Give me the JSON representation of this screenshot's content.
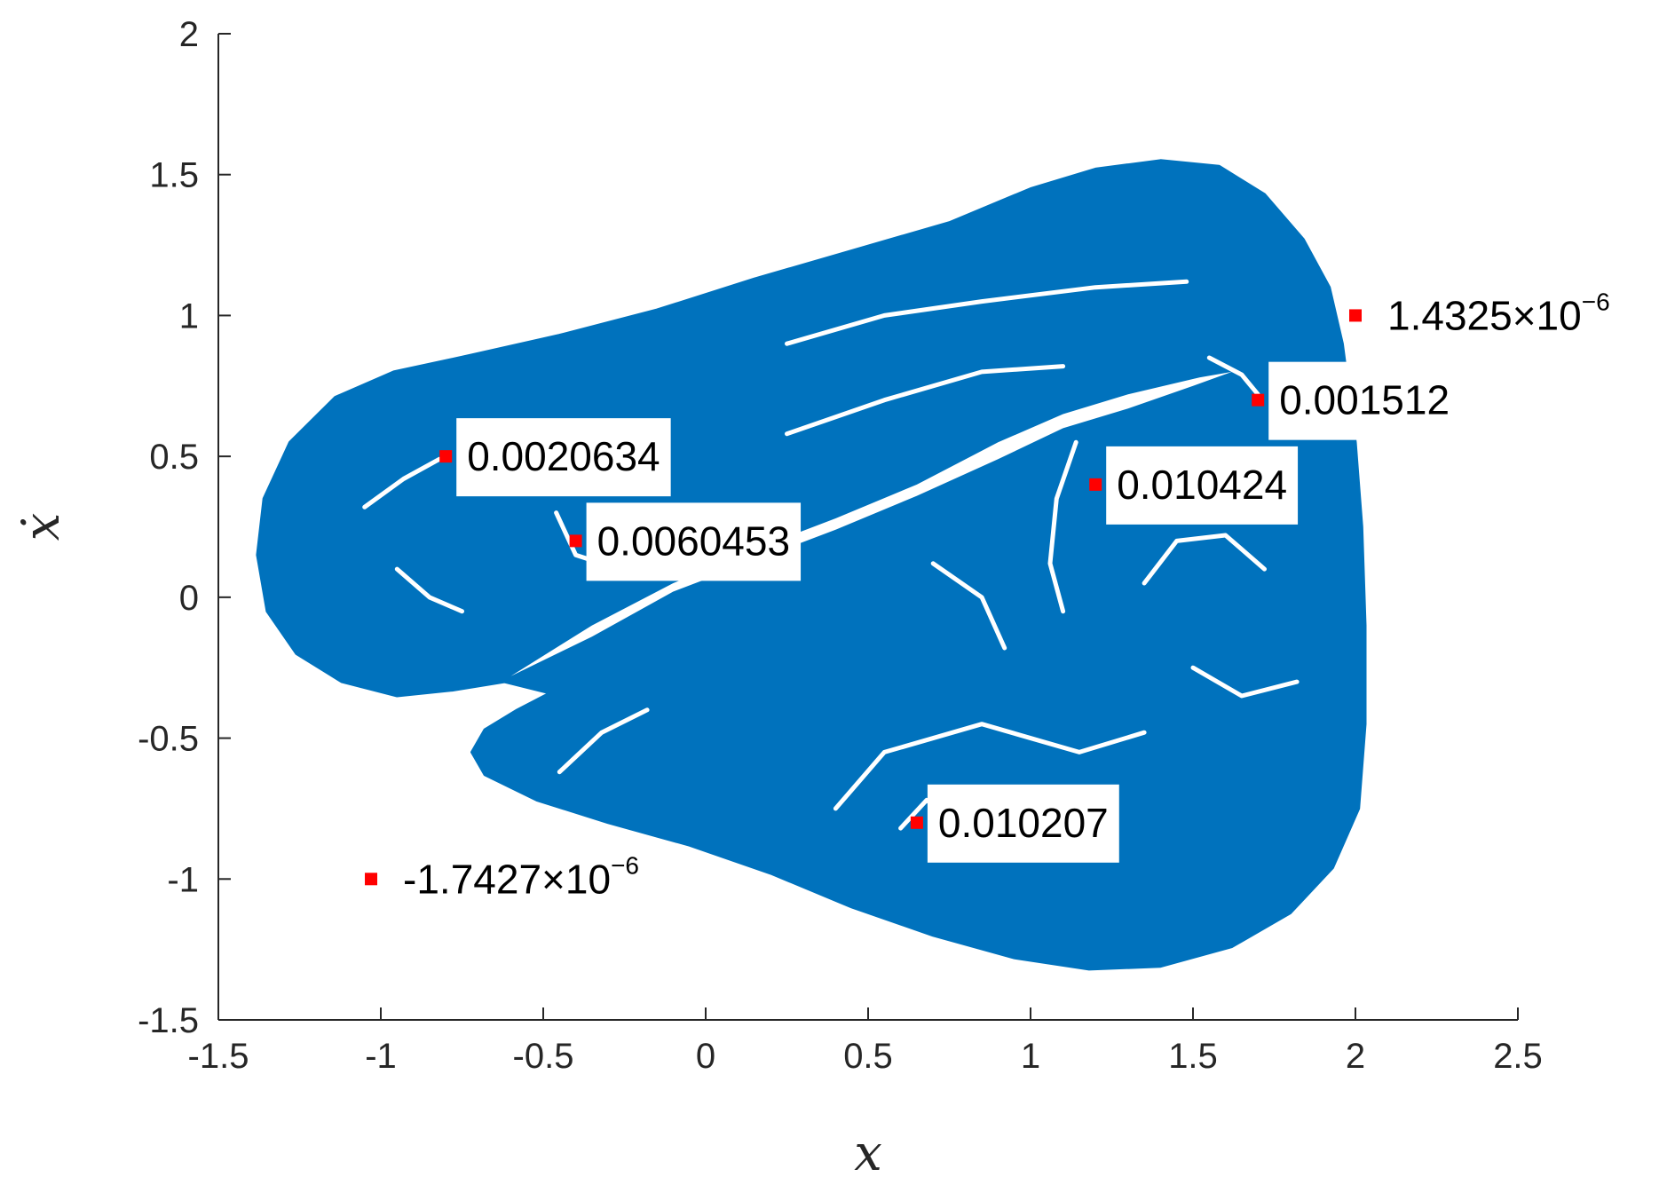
{
  "colors": {
    "basin": "#0072BD",
    "marker": "#FF0000",
    "axis": "#262626",
    "label_box": "#FFFFFF"
  },
  "chart_data": {
    "type": "scatter",
    "title": "",
    "xlabel": "x",
    "ylabel": "ẋ",
    "xlim": [
      -1.5,
      2.5
    ],
    "ylim": [
      -1.5,
      2
    ],
    "x_ticks": [
      -1.5,
      -1,
      -0.5,
      0,
      0.5,
      1,
      1.5,
      2,
      2.5
    ],
    "x_tick_labels": [
      "-1.5",
      "-1",
      "-0.5",
      "0",
      "0.5",
      "1",
      "1.5",
      "2",
      "2.5"
    ],
    "y_ticks": [
      -1.5,
      -1,
      -0.5,
      0,
      0.5,
      1,
      1.5,
      2
    ],
    "y_tick_labels": [
      "-1.5",
      "-1",
      "-0.5",
      "0",
      "0.5",
      "1",
      "1.5",
      "2"
    ],
    "grid": false,
    "basin_region": "filled blue basin of attraction with white filaments",
    "points": [
      {
        "x": -0.8,
        "y": 0.5,
        "label": "0.0020634",
        "boxed": true
      },
      {
        "x": -0.4,
        "y": 0.2,
        "label": "0.0060453",
        "boxed": true
      },
      {
        "x": 1.2,
        "y": 0.4,
        "label": "0.010424",
        "boxed": true
      },
      {
        "x": 1.7,
        "y": 0.7,
        "label": "0.001512",
        "boxed": true
      },
      {
        "x": 2.0,
        "y": 1.0,
        "label_mantissa": "1.4325×10",
        "label_exp": "−6",
        "boxed": false
      },
      {
        "x": -1.03,
        "y": -1.0,
        "label_mantissa": "-1.7427×10",
        "label_exp": "−6",
        "boxed": false
      },
      {
        "x": 0.65,
        "y": -0.8,
        "label": "0.010207",
        "boxed": true
      }
    ]
  }
}
